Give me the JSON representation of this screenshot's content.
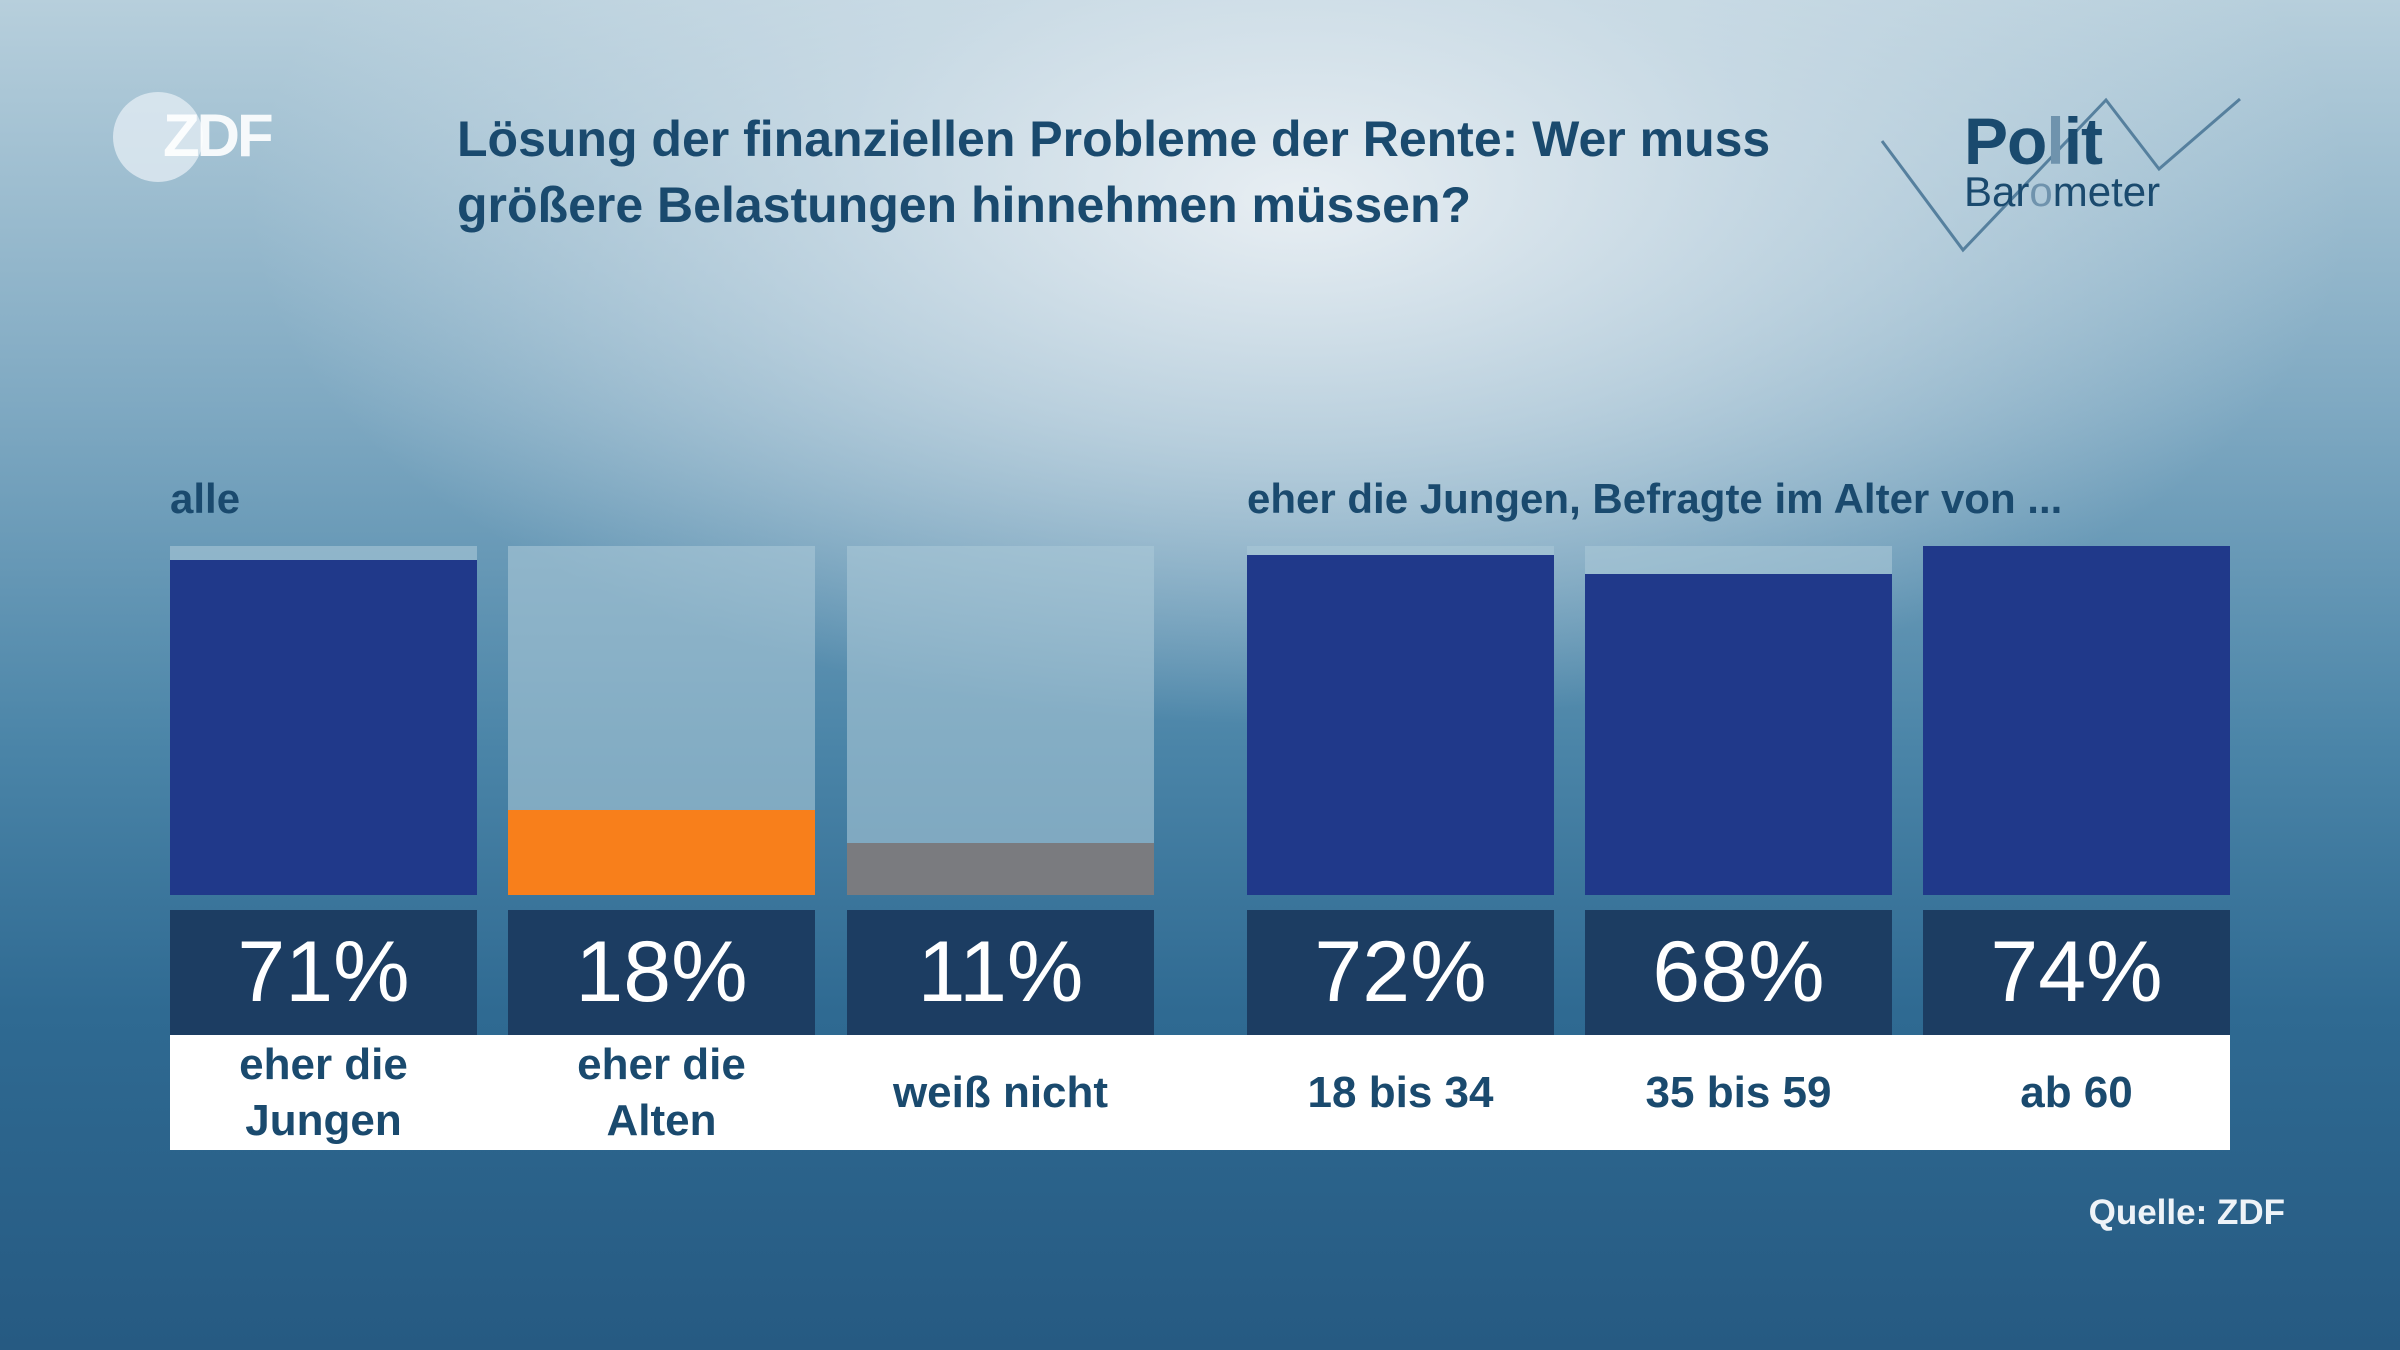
{
  "header": {
    "logo_text": "ZDF",
    "title": "Lösung der finanziellen Probleme der Rente: Wer muss größere Belastungen hinnehmen müssen?",
    "brand_line1_a": "Po",
    "brand_line1_b": "l",
    "brand_line1_c": "it",
    "brand_line2_a": "Bar",
    "brand_line2_b": "o",
    "brand_line2_c": "meter"
  },
  "source": "Quelle: ZDF",
  "chart_data": {
    "type": "bar",
    "title": "Lösung der finanziellen Probleme der Rente: Wer muss größere Belastungen hinnehmen müssen?",
    "ylim": [
      0,
      100
    ],
    "unit": "%",
    "groups": [
      {
        "heading": "alle",
        "bars": [
          {
            "category": "eher die\nJungen",
            "value": 71,
            "label": "71%",
            "color": "#20398a"
          },
          {
            "category": "eher die\nAlten",
            "value": 18,
            "label": "18%",
            "color": "#f87f1b"
          },
          {
            "category": "weiß nicht",
            "value": 11,
            "label": "11%",
            "color": "#7a7b7f"
          }
        ]
      },
      {
        "heading": "eher die Jungen, Befragte im Alter von ...",
        "bars": [
          {
            "category": "18 bis 34",
            "value": 72,
            "label": "72%",
            "color": "#20398a"
          },
          {
            "category": "35 bis 59",
            "value": 68,
            "label": "68%",
            "color": "#20398a"
          },
          {
            "category": "ab 60",
            "value": 74,
            "label": "74%",
            "color": "#20398a"
          }
        ]
      }
    ],
    "note": "Bars are scaled so the highest value (74%) fills the full column height."
  }
}
